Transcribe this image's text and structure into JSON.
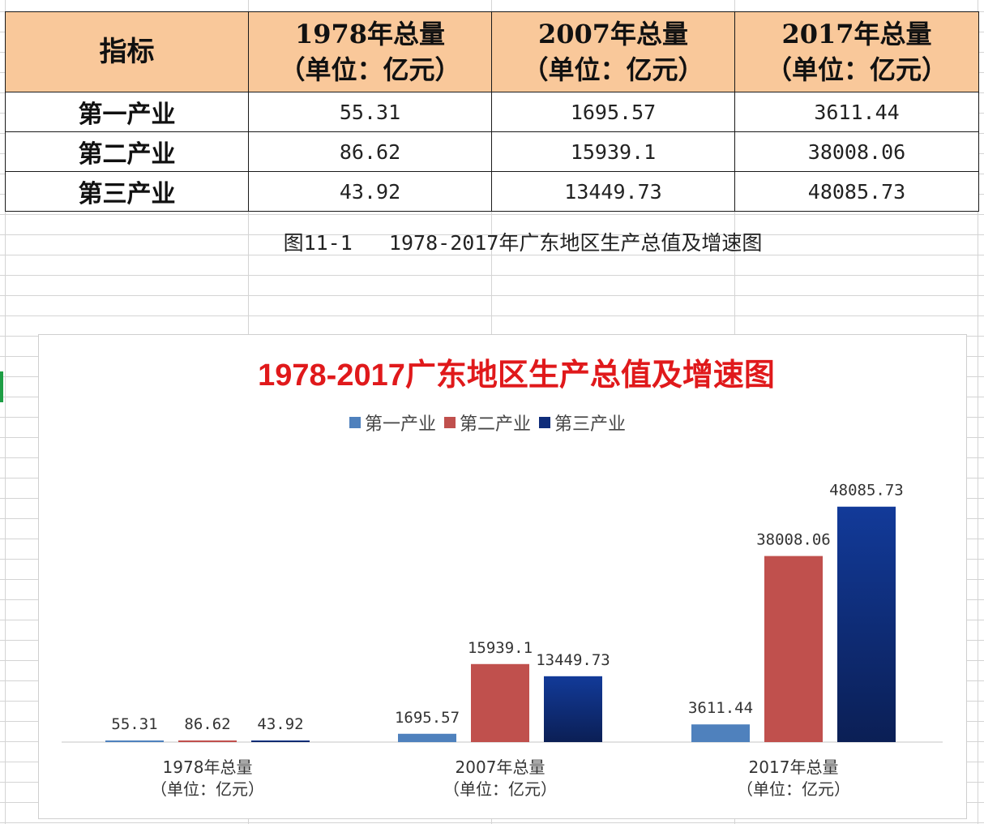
{
  "table": {
    "header": {
      "indicator": "指标",
      "cols": [
        {
          "line1": "1978年总量",
          "line2": "（单位：亿元）"
        },
        {
          "line1": "2007年总量",
          "line2": "（单位：亿元）"
        },
        {
          "line1": "2017年总量",
          "line2": "（单位：亿元）"
        }
      ]
    },
    "rows": [
      {
        "label": "第一产业",
        "values": [
          "55.31",
          "1695.57",
          "3611.44"
        ]
      },
      {
        "label": "第二产业",
        "values": [
          "86.62",
          "15939.1",
          "38008.06"
        ]
      },
      {
        "label": "第三产业",
        "values": [
          "43.92",
          "13449.73",
          "48085.73"
        ]
      }
    ]
  },
  "caption": "图11-1   1978-2017年广东地区生产总值及增速图",
  "colors": {
    "title": "#e0191b",
    "series": [
      "#4f81bd",
      "#c0504d",
      "#0f2d7a"
    ],
    "header_fill": "#f9c89a"
  },
  "chart_data": {
    "type": "bar",
    "title": "1978-2017广东地区生产总值及增速图",
    "categories": [
      [
        "1978年总量",
        "（单位：亿元）"
      ],
      [
        "2007年总量",
        "（单位：亿元）"
      ],
      [
        "2017年总量",
        "（单位：亿元）"
      ]
    ],
    "series": [
      {
        "name": "第一产业",
        "values": [
          55.31,
          1695.57,
          3611.44
        ],
        "labels": [
          "55.31",
          "1695.57",
          "3611.44"
        ]
      },
      {
        "name": "第二产业",
        "values": [
          86.62,
          15939.1,
          38008.06
        ],
        "labels": [
          "86.62",
          "15939.1",
          "38008.06"
        ]
      },
      {
        "name": "第三产业",
        "values": [
          43.92,
          13449.73,
          48085.73
        ],
        "labels": [
          "43.92",
          "13449.73",
          "48085.73"
        ]
      }
    ],
    "legend_position": "top",
    "grid": false,
    "y_axis_visible": false,
    "ylim": [
      0,
      60000
    ]
  }
}
